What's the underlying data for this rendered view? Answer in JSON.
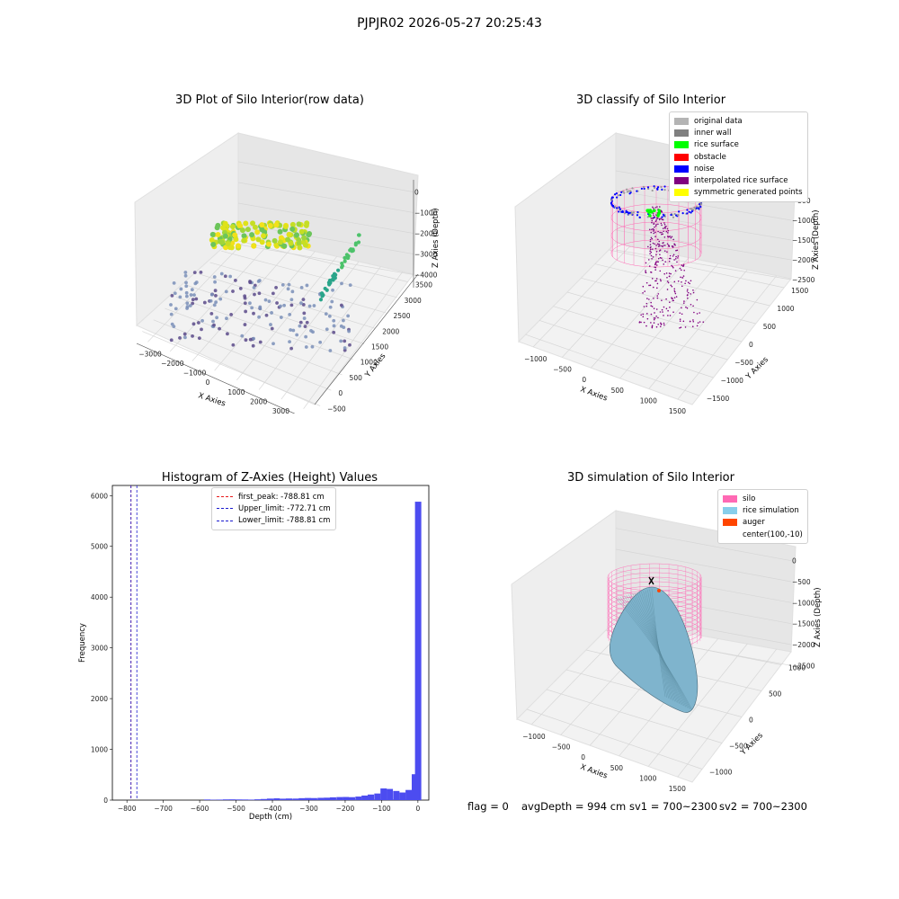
{
  "suptitle": "PJPJR02 2026-05-27 20:25:43",
  "colors": {
    "hist_bar": "#4c4cf0",
    "first_peak_line": "#e8181a",
    "limit_line": "#1a1acf",
    "silo_wire": "#ff69b4",
    "rice_surface": "#7fb4cd",
    "noise": "#0000ff",
    "interp": "#800080"
  },
  "plot1": {
    "title": "3D Plot of Silo Interior(row data)",
    "x_label": "X Axies",
    "y_label": "Y Axies",
    "z_label": "Z Axies (Depth)",
    "x_ticks": [
      "−3000",
      "−2000",
      "−1000",
      "0",
      "1000",
      "2000",
      "3000",
      "4000"
    ],
    "y_ticks": [
      "−500",
      "0",
      "500",
      "1000",
      "1500",
      "2000",
      "2500",
      "3000",
      "3500"
    ],
    "z_ticks": [
      "0",
      "−1000",
      "−2000",
      "−3000",
      "−4000"
    ]
  },
  "plot2": {
    "title": "3D classify of Silo Interior",
    "x_label": "X Axies",
    "y_label": "Y Axies",
    "z_label": "Z Axies (Depth)",
    "x_ticks": [
      "−1000",
      "−500",
      "0",
      "500",
      "1000",
      "1500"
    ],
    "y_ticks": [
      "−1500",
      "−1000",
      "−500",
      "0",
      "500",
      "1000",
      "1500"
    ],
    "z_ticks": [
      "−500",
      "−1000",
      "−1500",
      "−2000",
      "−2500"
    ],
    "legend": [
      {
        "label": "original data",
        "color": "#b4b4b4"
      },
      {
        "label": "inner wall",
        "color": "#808080"
      },
      {
        "label": "rice surface",
        "color": "#00ff00"
      },
      {
        "label": "obstacle",
        "color": "#ff0000"
      },
      {
        "label": "noise",
        "color": "#0000ff"
      },
      {
        "label": "interpolated rice surface",
        "color": "#800080"
      },
      {
        "label": "symmetric generated points",
        "color": "#ffff00"
      }
    ]
  },
  "plot3": {
    "title": "Histogram of Z-Axies (Height) Values",
    "legend": [
      {
        "label": "first_peak: -788.81 cm",
        "color": "#e8181a"
      },
      {
        "label": "Upper_limit: -772.71 cm",
        "color": "#1a1acf"
      },
      {
        "label": "Lower_limit: -788.81 cm",
        "color": "#1a1acf"
      }
    ]
  },
  "plot4": {
    "title": "3D simulation of Silo Interior",
    "x_label": "X Axies",
    "y_label": "Y Axies",
    "z_label": "Z Axies (Depth)",
    "x_ticks": [
      "−1000",
      "−500",
      "0",
      "500",
      "1000",
      "1500"
    ],
    "y_ticks": [
      "−1000",
      "−500",
      "0",
      "500",
      "1000"
    ],
    "z_ticks": [
      "0",
      "−500",
      "−1000",
      "−1500",
      "−2000",
      "−2500"
    ],
    "legend": [
      {
        "label": "silo",
        "color": "#ff69b4"
      },
      {
        "label": "rice simulation",
        "color": "#87ceeb"
      },
      {
        "label": "auger",
        "color": "#ff4500"
      },
      {
        "label": "center(100,-10)",
        "color": ""
      }
    ]
  },
  "footer": {
    "flag": "flag = 0",
    "avg_depth": "avgDepth = 994 cm",
    "sv1": "sv1 = 700~2300",
    "sv2": "sv2 = 700~2300"
  },
  "chart_data": [
    {
      "type": "histogram",
      "title": "Histogram of Z-Axies (Height) Values",
      "xlabel": "Depth (cm)",
      "ylabel": "Frequency",
      "xlim": [
        -840,
        30
      ],
      "ylim": [
        0,
        6200
      ],
      "x_ticks": [
        -800,
        -700,
        -600,
        -500,
        -400,
        -300,
        -200,
        -100,
        0
      ],
      "y_ticks": [
        0,
        1000,
        2000,
        3000,
        4000,
        5000,
        6000
      ],
      "bin_width": 17.3,
      "bins": [
        {
          "x0": -588,
          "count": 12
        },
        {
          "x0": -571,
          "count": 8
        },
        {
          "x0": -553,
          "count": 10
        },
        {
          "x0": -536,
          "count": 14
        },
        {
          "x0": -519,
          "count": 15
        },
        {
          "x0": -501,
          "count": 13
        },
        {
          "x0": -484,
          "count": 12
        },
        {
          "x0": -467,
          "count": 10
        },
        {
          "x0": -449,
          "count": 16
        },
        {
          "x0": -432,
          "count": 22
        },
        {
          "x0": -415,
          "count": 30
        },
        {
          "x0": -397,
          "count": 35
        },
        {
          "x0": -380,
          "count": 28
        },
        {
          "x0": -363,
          "count": 32
        },
        {
          "x0": -345,
          "count": 30
        },
        {
          "x0": -328,
          "count": 38
        },
        {
          "x0": -311,
          "count": 42
        },
        {
          "x0": -294,
          "count": 40
        },
        {
          "x0": -276,
          "count": 45
        },
        {
          "x0": -259,
          "count": 48
        },
        {
          "x0": -242,
          "count": 55
        },
        {
          "x0": -224,
          "count": 60
        },
        {
          "x0": -207,
          "count": 62
        },
        {
          "x0": -190,
          "count": 58
        },
        {
          "x0": -172,
          "count": 70
        },
        {
          "x0": -155,
          "count": 90
        },
        {
          "x0": -138,
          "count": 110
        },
        {
          "x0": -120,
          "count": 130
        },
        {
          "x0": -103,
          "count": 230
        },
        {
          "x0": -86,
          "count": 220
        },
        {
          "x0": -68,
          "count": 180
        },
        {
          "x0": -51,
          "count": 150
        },
        {
          "x0": -34,
          "count": 200
        },
        {
          "x0": -17,
          "count": 510
        },
        {
          "x0": -8,
          "count": 5880
        }
      ],
      "vlines": [
        {
          "name": "first_peak",
          "x": -788.81,
          "color": "#e8181a"
        },
        {
          "name": "Upper_limit",
          "x": -772.71,
          "color": "#1a1acf"
        },
        {
          "name": "Lower_limit",
          "x": -788.81,
          "color": "#1a1acf"
        }
      ]
    }
  ]
}
